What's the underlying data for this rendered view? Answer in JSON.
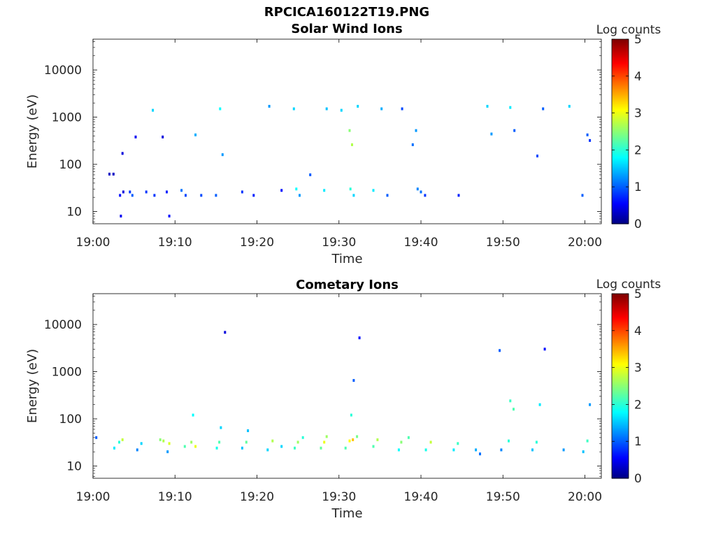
{
  "figure": {
    "title": "RPCICA160122T19.PNG",
    "background": "#ffffff"
  },
  "colormap": {
    "name": "jet",
    "stops": [
      "#000080",
      "#0000ff",
      "#00ffff",
      "#ffff00",
      "#ff0000",
      "#800000"
    ]
  },
  "chart_data": [
    {
      "type": "heatmap",
      "title": "Solar Wind Ions",
      "xlabel": "Time",
      "ylabel": "Energy (eV)",
      "xlim": [
        "19:00",
        "20:02"
      ],
      "x_ticks": [
        "19:00",
        "19:10",
        "19:20",
        "19:30",
        "19:40",
        "19:50",
        "20:00"
      ],
      "ylim": [
        5.5,
        45000
      ],
      "yscale": "log",
      "y_ticks": [
        {
          "value": 10,
          "label": "10"
        },
        {
          "value": 100,
          "label": "100"
        },
        {
          "value": 1000,
          "label": "1000"
        },
        {
          "value": 10000,
          "label": "10000"
        }
      ],
      "colorbar": {
        "label": "Log counts",
        "min": 0,
        "max": 5,
        "ticks": [
          "0",
          "1",
          "2",
          "3",
          "4",
          "5"
        ]
      },
      "cells": [
        [
          2.0,
          62,
          0.3
        ],
        [
          2.5,
          62,
          0.3
        ],
        [
          3.3,
          22,
          0.6
        ],
        [
          3.7,
          26,
          0.4
        ],
        [
          3.4,
          8,
          0.5
        ],
        [
          3.6,
          170,
          0.4
        ],
        [
          4.5,
          26,
          0.8
        ],
        [
          4.8,
          22,
          1.0
        ],
        [
          5.2,
          380,
          0.5
        ],
        [
          6.5,
          26,
          0.8
        ],
        [
          7.3,
          1400,
          1.6
        ],
        [
          7.5,
          22,
          0.8
        ],
        [
          8.5,
          380,
          0.4
        ],
        [
          9.0,
          26,
          0.7
        ],
        [
          9.3,
          8,
          0.6
        ],
        [
          10.8,
          28,
          1.1
        ],
        [
          11.3,
          22,
          0.9
        ],
        [
          12.5,
          420,
          1.4
        ],
        [
          13.2,
          22,
          0.9
        ],
        [
          15.5,
          1500,
          1.8
        ],
        [
          15.8,
          160,
          1.3
        ],
        [
          15.0,
          22,
          1.0
        ],
        [
          18.2,
          26,
          0.8
        ],
        [
          19.6,
          22,
          0.7
        ],
        [
          21.5,
          1700,
          1.3
        ],
        [
          23.0,
          28,
          0.6
        ],
        [
          24.5,
          1500,
          1.6
        ],
        [
          24.8,
          30,
          1.8
        ],
        [
          25.2,
          22,
          1.3
        ],
        [
          26.5,
          60,
          1.0
        ],
        [
          28.2,
          28,
          1.7
        ],
        [
          28.5,
          1500,
          1.5
        ],
        [
          30.3,
          1400,
          1.6
        ],
        [
          31.3,
          520,
          2.5
        ],
        [
          31.6,
          260,
          2.7
        ],
        [
          31.4,
          30,
          2.0
        ],
        [
          31.8,
          22,
          1.6
        ],
        [
          32.3,
          1700,
          1.6
        ],
        [
          34.2,
          28,
          1.7
        ],
        [
          35.2,
          1500,
          1.4
        ],
        [
          35.9,
          22,
          1.0
        ],
        [
          37.7,
          1500,
          0.9
        ],
        [
          39.0,
          260,
          1.1
        ],
        [
          39.4,
          520,
          1.3
        ],
        [
          39.6,
          30,
          1.2
        ],
        [
          40.0,
          26,
          1.1
        ],
        [
          40.5,
          22,
          0.8
        ],
        [
          44.6,
          22,
          0.7
        ],
        [
          48.1,
          1700,
          1.6
        ],
        [
          48.6,
          440,
          1.3
        ],
        [
          50.9,
          1600,
          1.7
        ],
        [
          51.4,
          520,
          1.0
        ],
        [
          54.2,
          150,
          0.9
        ],
        [
          54.9,
          1500,
          1.0
        ],
        [
          58.1,
          1700,
          1.6
        ],
        [
          59.7,
          22,
          1.0
        ],
        [
          60.3,
          420,
          1.0
        ],
        [
          60.6,
          320,
          0.8
        ]
      ]
    },
    {
      "type": "heatmap",
      "title": "Cometary Ions",
      "xlabel": "Time",
      "ylabel": "Energy (eV)",
      "xlim": [
        "19:00",
        "20:02"
      ],
      "x_ticks": [
        "19:00",
        "19:10",
        "19:20",
        "19:30",
        "19:40",
        "19:50",
        "20:00"
      ],
      "ylim": [
        5.5,
        45000
      ],
      "yscale": "log",
      "y_ticks": [
        {
          "value": 10,
          "label": "10"
        },
        {
          "value": 100,
          "label": "100"
        },
        {
          "value": 1000,
          "label": "1000"
        },
        {
          "value": 10000,
          "label": "10000"
        }
      ],
      "colorbar": {
        "label": "Log counts",
        "min": 0,
        "max": 5,
        "ticks": [
          "0",
          "1",
          "2",
          "3",
          "4",
          "5"
        ]
      },
      "cells": [
        [
          0.4,
          40,
          1.0
        ],
        [
          2.6,
          24,
          1.7
        ],
        [
          3.2,
          32,
          2.0
        ],
        [
          3.6,
          36,
          2.8
        ],
        [
          5.4,
          22,
          1.2
        ],
        [
          5.9,
          30,
          1.6
        ],
        [
          8.2,
          36,
          2.5
        ],
        [
          8.6,
          34,
          2.7
        ],
        [
          9.3,
          30,
          2.9
        ],
        [
          9.1,
          20,
          1.3
        ],
        [
          11.2,
          26,
          2.2
        ],
        [
          12.0,
          32,
          2.6
        ],
        [
          12.5,
          26,
          3.0
        ],
        [
          12.2,
          120,
          1.8
        ],
        [
          15.1,
          24,
          1.9
        ],
        [
          15.4,
          32,
          2.2
        ],
        [
          15.6,
          65,
          1.6
        ],
        [
          18.2,
          24,
          1.5
        ],
        [
          18.7,
          32,
          2.3
        ],
        [
          18.9,
          56,
          1.5
        ],
        [
          21.3,
          22,
          1.6
        ],
        [
          21.9,
          34,
          2.7
        ],
        [
          23.0,
          26,
          1.6
        ],
        [
          24.6,
          24,
          2.1
        ],
        [
          25.0,
          32,
          2.6
        ],
        [
          25.6,
          40,
          2.0
        ],
        [
          27.8,
          24,
          2.3
        ],
        [
          28.2,
          32,
          3.0
        ],
        [
          28.5,
          42,
          2.6
        ],
        [
          30.8,
          24,
          2.2
        ],
        [
          31.3,
          34,
          3.1
        ],
        [
          31.7,
          36,
          3.4
        ],
        [
          31.5,
          120,
          2.0
        ],
        [
          31.8,
          650,
          1.0
        ],
        [
          32.2,
          42,
          2.4
        ],
        [
          34.2,
          26,
          2.2
        ],
        [
          34.7,
          36,
          2.7
        ],
        [
          37.3,
          22,
          1.8
        ],
        [
          37.6,
          32,
          2.5
        ],
        [
          38.5,
          40,
          2.2
        ],
        [
          40.6,
          22,
          1.9
        ],
        [
          41.2,
          32,
          2.8
        ],
        [
          44.0,
          22,
          1.7
        ],
        [
          44.5,
          30,
          2.1
        ],
        [
          46.7,
          22,
          1.4
        ],
        [
          47.2,
          18,
          1.1
        ],
        [
          49.8,
          22,
          1.2
        ],
        [
          50.7,
          34,
          2.0
        ],
        [
          50.9,
          240,
          2.1
        ],
        [
          51.3,
          160,
          2.2
        ],
        [
          53.6,
          22,
          1.5
        ],
        [
          54.1,
          32,
          2.0
        ],
        [
          54.5,
          200,
          1.7
        ],
        [
          57.4,
          22,
          1.3
        ],
        [
          59.8,
          20,
          1.5
        ],
        [
          60.3,
          34,
          2.1
        ],
        [
          60.6,
          200,
          1.3
        ],
        [
          16.1,
          6800,
          0.4
        ],
        [
          32.5,
          5200,
          0.6
        ],
        [
          49.6,
          2800,
          1.0
        ],
        [
          55.1,
          3000,
          0.6
        ]
      ]
    }
  ]
}
